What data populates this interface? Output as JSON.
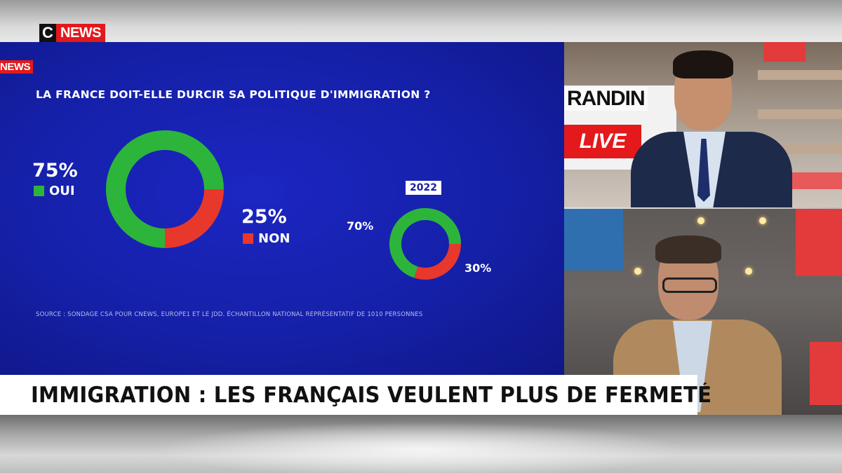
{
  "channel": {
    "logo_c": "C",
    "logo_news": "NEWS",
    "panel_tag": "NEWS"
  },
  "headline": "IMMIGRATION : LES FRANÇAIS VEULENT PLUS DE FERMETÉ",
  "studio": {
    "screen_text": "RANDIN",
    "live_label": "LIVE"
  },
  "colors": {
    "oui": "#2db53b",
    "non": "#e8382c",
    "panel_blue": "#1520a8",
    "brand_red": "#e3191b"
  },
  "chart_data": [
    {
      "type": "pie",
      "title": "LA FRANCE DOIT-ELLE DURCIR SA POLITIQUE D'IMMIGRATION ?",
      "style": "donut",
      "categories": [
        "OUI",
        "NON"
      ],
      "values": [
        75,
        25
      ],
      "value_labels": [
        "75%",
        "25%"
      ],
      "source": "SOURCE : SONDAGE CSA POUR CNEWS, EUROPE1 ET LE JDD. ÉCHANTILLON NATIONAL REPRÉSENTATIF DE 1010 PERSONNES"
    },
    {
      "type": "pie",
      "style": "donut",
      "label": "2022",
      "categories": [
        "OUI",
        "NON"
      ],
      "values": [
        70,
        30
      ],
      "value_labels": [
        "70%",
        "30%"
      ]
    }
  ]
}
